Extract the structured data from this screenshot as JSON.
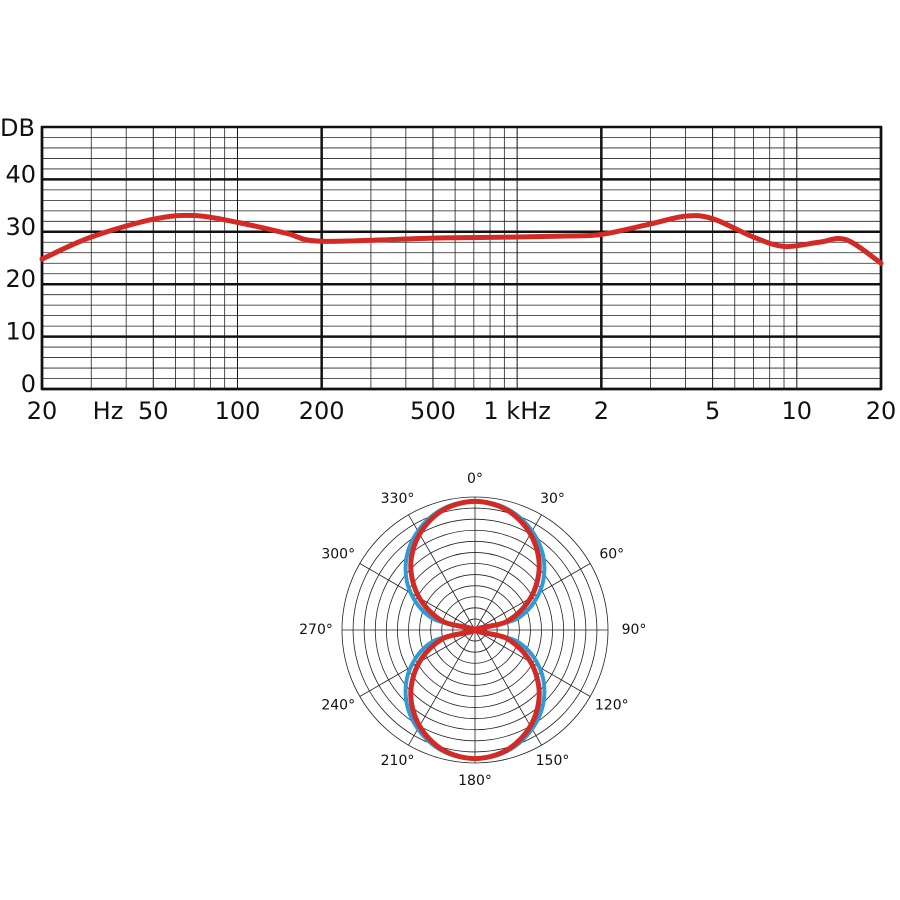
{
  "chart_data": [
    {
      "type": "line",
      "xscale": "log",
      "y_label": "DB",
      "x_unit": "Hz",
      "xlim": [
        20,
        20000
      ],
      "ylim": [
        0,
        50
      ],
      "xticks": [
        20,
        50,
        100,
        200,
        500,
        {
          "value": 1000,
          "label": "1 kHz"
        },
        {
          "value": 2000,
          "label": "2"
        },
        {
          "value": 5000,
          "label": "5"
        },
        {
          "value": 10000,
          "label": "10"
        },
        {
          "value": 20000,
          "label": "20"
        }
      ],
      "yticks": [
        0,
        10,
        20,
        30,
        40
      ],
      "xminor": [
        30,
        40,
        60,
        70,
        80,
        90,
        300,
        400,
        600,
        700,
        800,
        900,
        3000,
        4000,
        6000,
        7000,
        8000,
        9000
      ],
      "yminor": [
        2,
        4,
        6,
        8,
        12,
        14,
        16,
        18,
        22,
        24,
        26,
        28,
        32,
        34,
        36,
        38,
        42,
        44,
        46,
        48
      ],
      "grid": true,
      "series": [
        {
          "color": "#d42a25",
          "x": [
            20,
            30,
            50,
            70,
            100,
            150,
            200,
            500,
            1000,
            1500,
            2000,
            3000,
            4000,
            5000,
            7000,
            9000,
            12000,
            15000,
            20000
          ],
          "values": [
            24.8,
            29,
            32.4,
            33.1,
            31.8,
            29.7,
            28.2,
            28.8,
            29,
            29.2,
            29.5,
            31.5,
            33,
            32.5,
            29,
            27.2,
            28,
            28.5,
            24
          ]
        }
      ]
    },
    {
      "type": "polar",
      "rlim": [
        0,
        12
      ],
      "rticks": [
        1,
        2,
        3,
        4,
        5,
        6,
        7,
        8,
        9,
        10,
        11,
        12
      ],
      "thetaticks": [
        {
          "value": 0,
          "label": "0°"
        },
        {
          "value": 30,
          "label": "30°"
        },
        {
          "value": 60,
          "label": "60°"
        },
        {
          "value": 90,
          "label": "90°"
        },
        {
          "value": 120,
          "label": "120°"
        },
        {
          "value": 150,
          "label": "150°"
        },
        {
          "value": 180,
          "label": "180°"
        },
        {
          "value": 210,
          "label": "210°"
        },
        {
          "value": 240,
          "label": "240°"
        },
        {
          "value": 270,
          "label": "270°"
        },
        {
          "value": 300,
          "label": "300°"
        },
        {
          "value": 330,
          "label": "330°"
        }
      ],
      "theta": [
        0,
        15,
        30,
        45,
        60,
        75,
        90,
        105,
        120,
        135,
        150,
        165,
        180,
        195,
        210,
        225,
        240,
        255,
        270,
        285,
        300,
        315,
        330,
        345
      ],
      "series": [
        {
          "color": "#2e9ad6",
          "values": [
            11.6,
            11.3,
            10.3,
            8.8,
            6.7,
            3.9,
            0,
            3.9,
            6.7,
            8.8,
            10.3,
            11.3,
            11.6,
            11.3,
            10.3,
            8.8,
            6.7,
            3.9,
            0,
            3.9,
            6.7,
            8.8,
            10.3,
            11.3
          ]
        },
        {
          "color": "#d42a25",
          "values": [
            11.6,
            11.2,
            10.0,
            8.2,
            5.8,
            3.0,
            0,
            3.0,
            5.8,
            8.2,
            10.0,
            11.2,
            11.6,
            11.2,
            10.0,
            8.2,
            5.8,
            3.0,
            0,
            3.0,
            5.8,
            8.2,
            10.0,
            11.2
          ]
        }
      ]
    }
  ]
}
